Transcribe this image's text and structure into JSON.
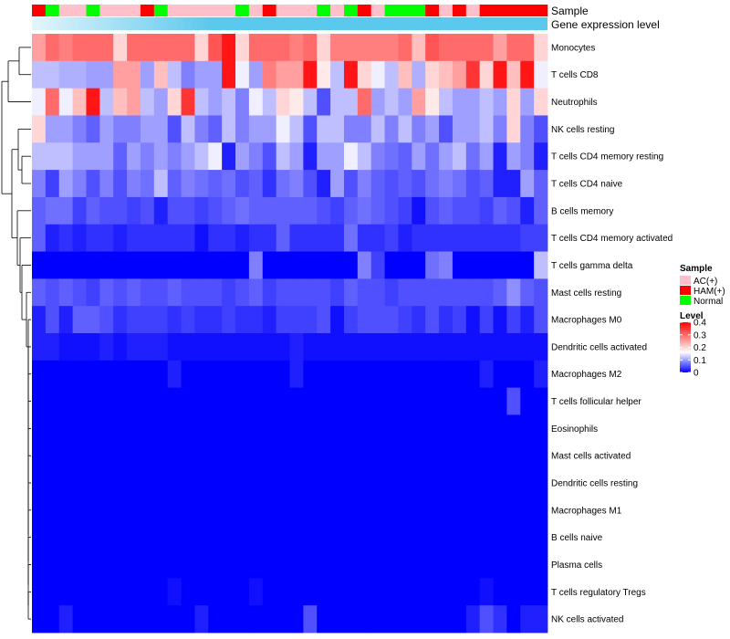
{
  "chart_data": {
    "type": "heatmap",
    "annotation_labels": {
      "sample": "Sample",
      "expression": "Gene expression level"
    },
    "sample_colors": {
      "AC(+)": "#ffc0cb",
      "HAM(+)": "#ff0000",
      "Normal": "#00ff00"
    },
    "expression_color": "#5bc8ee",
    "expression_color_light": "#e4f5fb",
    "samples": [
      "HAM(+)",
      "Normal",
      "AC(+)",
      "AC(+)",
      "Normal",
      "AC(+)",
      "AC(+)",
      "AC(+)",
      "HAM(+)",
      "Normal",
      "AC(+)",
      "AC(+)",
      "AC(+)",
      "AC(+)",
      "AC(+)",
      "Normal",
      "AC(+)",
      "HAM(+)",
      "AC(+)",
      "AC(+)",
      "AC(+)",
      "Normal",
      "AC(+)",
      "Normal",
      "HAM(+)",
      "AC(+)",
      "Normal",
      "Normal",
      "Normal",
      "HAM(+)",
      "AC(+)",
      "HAM(+)",
      "AC(+)",
      "HAM(+)",
      "HAM(+)",
      "HAM(+)",
      "HAM(+)",
      "HAM(+)"
    ],
    "rows": [
      "Monocytes",
      "T cells CD8",
      "Neutrophils",
      "NK cells resting",
      "T cells CD4 memory resting",
      "T cells CD4 naive",
      "B cells memory",
      "T cells CD4 memory activated",
      "T cells gamma delta",
      "Mast cells resting",
      "Macrophages M0",
      "Dendritic cells activated",
      "Macrophages M2",
      "T cells follicular helper",
      "Eosinophils",
      "Mast cells activated",
      "Dendritic cells resting",
      "Macrophages M1",
      "B cells naive",
      "Plasma cells",
      "T cells regulatory  Tregs",
      "NK cells activated"
    ],
    "values": [
      [
        0.25,
        0.3,
        0.28,
        0.3,
        0.3,
        0.3,
        0.2,
        0.3,
        0.3,
        0.3,
        0.3,
        0.3,
        0.2,
        0.32,
        0.38,
        0.2,
        0.3,
        0.3,
        0.3,
        0.28,
        0.3,
        0.2,
        0.28,
        0.28,
        0.28,
        0.28,
        0.28,
        0.3,
        0.22,
        0.32,
        0.3,
        0.3,
        0.3,
        0.3,
        0.25,
        0.3,
        0.3,
        0.2
      ],
      [
        0.12,
        0.12,
        0.11,
        0.11,
        0.1,
        0.1,
        0.25,
        0.25,
        0.1,
        0.22,
        0.12,
        0.08,
        0.1,
        0.1,
        0.38,
        0.15,
        0.1,
        0.28,
        0.25,
        0.25,
        0.38,
        0.18,
        0.12,
        0.38,
        0.2,
        0.15,
        0.12,
        0.22,
        0.11,
        0.2,
        0.22,
        0.25,
        0.35,
        0.2,
        0.38,
        0.22,
        0.38,
        0.15
      ],
      [
        0.15,
        0.3,
        0.15,
        0.22,
        0.38,
        0.12,
        0.22,
        0.25,
        0.12,
        0.1,
        0.2,
        0.35,
        0.12,
        0.1,
        0.12,
        0.08,
        0.15,
        0.12,
        0.2,
        0.18,
        0.12,
        0.05,
        0.12,
        0.12,
        0.3,
        0.1,
        0.12,
        0.1,
        0.25,
        0.18,
        0.12,
        0.1,
        0.1,
        0.12,
        0.1,
        0.2,
        0.1,
        0.2
      ],
      [
        0.2,
        0.1,
        0.1,
        0.08,
        0.06,
        0.1,
        0.08,
        0.08,
        0.1,
        0.1,
        0.05,
        0.12,
        0.08,
        0.06,
        0.12,
        0.08,
        0.1,
        0.1,
        0.15,
        0.12,
        0.05,
        0.12,
        0.12,
        0.08,
        0.08,
        0.12,
        0.08,
        0.12,
        0.08,
        0.1,
        0.05,
        0.1,
        0.1,
        0.12,
        0.08,
        0.2,
        0.08,
        0.05
      ],
      [
        0.12,
        0.12,
        0.12,
        0.1,
        0.1,
        0.1,
        0.06,
        0.1,
        0.08,
        0.1,
        0.08,
        0.1,
        0.12,
        0.15,
        0.02,
        0.1,
        0.08,
        0.05,
        0.12,
        0.1,
        0.02,
        0.1,
        0.1,
        0.15,
        0.12,
        0.08,
        0.07,
        0.06,
        0.1,
        0.07,
        0.1,
        0.12,
        0.07,
        0.1,
        0.02,
        0.1,
        0.08,
        0.02
      ],
      [
        0.08,
        0.04,
        0.1,
        0.08,
        0.05,
        0.08,
        0.05,
        0.08,
        0.07,
        0.12,
        0.06,
        0.08,
        0.07,
        0.06,
        0.07,
        0.05,
        0.06,
        0.03,
        0.07,
        0.08,
        0.05,
        0.02,
        0.1,
        0.05,
        0.08,
        0.06,
        0.05,
        0.06,
        0.05,
        0.07,
        0.08,
        0.07,
        0.05,
        0.06,
        0.02,
        0.02,
        0.1,
        0.06
      ],
      [
        0.06,
        0.07,
        0.07,
        0.04,
        0.06,
        0.05,
        0.05,
        0.04,
        0.05,
        0.02,
        0.05,
        0.05,
        0.04,
        0.05,
        0.06,
        0.07,
        0.06,
        0.06,
        0.06,
        0.06,
        0.06,
        0.05,
        0.04,
        0.06,
        0.07,
        0.06,
        0.05,
        0.04,
        0.01,
        0.05,
        0.06,
        0.05,
        0.05,
        0.04,
        0.06,
        0.05,
        0.02,
        0.06
      ],
      [
        0.06,
        0.02,
        0.03,
        0.02,
        0.03,
        0.03,
        0.02,
        0.03,
        0.03,
        0.03,
        0.03,
        0.03,
        0.01,
        0.03,
        0.03,
        0.02,
        0.03,
        0.03,
        0.06,
        0.03,
        0.03,
        0.03,
        0.03,
        0.07,
        0.03,
        0.03,
        0.04,
        0.02,
        0.03,
        0.03,
        0.03,
        0.03,
        0.03,
        0.03,
        0.03,
        0.03,
        0.04,
        0.04
      ],
      [
        0.0,
        0.0,
        0.0,
        0.0,
        0.0,
        0.0,
        0.0,
        0.0,
        0.0,
        0.0,
        0.0,
        0.0,
        0.0,
        0.0,
        0.0,
        0.0,
        0.08,
        0.0,
        0.0,
        0.0,
        0.0,
        0.0,
        0.0,
        0.0,
        0.08,
        0.04,
        0.0,
        0.0,
        0.0,
        0.07,
        0.08,
        0.0,
        0.0,
        0.0,
        0.0,
        0.0,
        0.0,
        0.12
      ],
      [
        0.06,
        0.05,
        0.06,
        0.05,
        0.04,
        0.06,
        0.05,
        0.06,
        0.05,
        0.05,
        0.06,
        0.05,
        0.05,
        0.05,
        0.04,
        0.05,
        0.06,
        0.04,
        0.05,
        0.05,
        0.05,
        0.05,
        0.04,
        0.06,
        0.05,
        0.05,
        0.04,
        0.05,
        0.05,
        0.05,
        0.05,
        0.05,
        0.05,
        0.05,
        0.06,
        0.09,
        0.06,
        0.05
      ],
      [
        0.02,
        0.05,
        0.02,
        0.06,
        0.06,
        0.05,
        0.03,
        0.04,
        0.04,
        0.04,
        0.03,
        0.04,
        0.03,
        0.03,
        0.04,
        0.03,
        0.03,
        0.02,
        0.04,
        0.04,
        0.04,
        0.05,
        0.01,
        0.04,
        0.05,
        0.05,
        0.05,
        0.04,
        0.03,
        0.05,
        0.03,
        0.04,
        0.01,
        0.04,
        0.01,
        0.04,
        0.02,
        0.05
      ],
      [
        0.02,
        0.02,
        0.01,
        0.01,
        0.01,
        0.02,
        0.01,
        0.02,
        0.02,
        0.02,
        0.01,
        0.01,
        0.01,
        0.01,
        0.01,
        0.01,
        0.01,
        0.01,
        0.01,
        0.02,
        0.01,
        0.01,
        0.01,
        0.01,
        0.01,
        0.01,
        0.01,
        0.01,
        0.01,
        0.01,
        0.01,
        0.01,
        0.01,
        0.01,
        0.01,
        0.01,
        0.01,
        0.01
      ],
      [
        0.0,
        0.0,
        0.0,
        0.0,
        0.0,
        0.0,
        0.0,
        0.0,
        0.0,
        0.0,
        0.02,
        0.0,
        0.0,
        0.0,
        0.0,
        0.0,
        0.0,
        0.0,
        0.0,
        0.02,
        0.0,
        0.0,
        0.0,
        0.0,
        0.0,
        0.0,
        0.0,
        0.0,
        0.0,
        0.0,
        0.0,
        0.0,
        0.0,
        0.02,
        0.0,
        0.0,
        0.0,
        0.02
      ],
      [
        0.0,
        0.0,
        0.0,
        0.0,
        0.0,
        0.0,
        0.0,
        0.0,
        0.0,
        0.0,
        0.0,
        0.0,
        0.0,
        0.0,
        0.0,
        0.0,
        0.0,
        0.0,
        0.0,
        0.0,
        0.0,
        0.0,
        0.0,
        0.0,
        0.0,
        0.0,
        0.0,
        0.0,
        0.0,
        0.0,
        0.0,
        0.0,
        0.0,
        0.0,
        0.0,
        0.05,
        0.0,
        0.0
      ],
      [
        0.0,
        0.0,
        0.0,
        0.0,
        0.0,
        0.0,
        0.0,
        0.0,
        0.0,
        0.0,
        0.0,
        0.0,
        0.0,
        0.0,
        0.0,
        0.0,
        0.0,
        0.0,
        0.0,
        0.0,
        0.0,
        0.0,
        0.0,
        0.0,
        0.0,
        0.0,
        0.0,
        0.0,
        0.0,
        0.0,
        0.0,
        0.0,
        0.0,
        0.0,
        0.0,
        0.0,
        0.0,
        0.0
      ],
      [
        0.0,
        0.0,
        0.0,
        0.0,
        0.0,
        0.0,
        0.0,
        0.0,
        0.0,
        0.0,
        0.0,
        0.0,
        0.0,
        0.0,
        0.0,
        0.0,
        0.0,
        0.0,
        0.0,
        0.0,
        0.0,
        0.0,
        0.0,
        0.0,
        0.0,
        0.0,
        0.0,
        0.0,
        0.0,
        0.0,
        0.0,
        0.0,
        0.0,
        0.0,
        0.0,
        0.0,
        0.0,
        0.0
      ],
      [
        0.0,
        0.0,
        0.0,
        0.0,
        0.0,
        0.0,
        0.0,
        0.0,
        0.0,
        0.0,
        0.0,
        0.0,
        0.0,
        0.0,
        0.0,
        0.0,
        0.0,
        0.0,
        0.0,
        0.0,
        0.0,
        0.0,
        0.0,
        0.0,
        0.0,
        0.0,
        0.0,
        0.0,
        0.0,
        0.0,
        0.0,
        0.0,
        0.0,
        0.0,
        0.0,
        0.0,
        0.0,
        0.0
      ],
      [
        0.0,
        0.0,
        0.0,
        0.0,
        0.0,
        0.0,
        0.0,
        0.0,
        0.0,
        0.0,
        0.0,
        0.0,
        0.0,
        0.0,
        0.0,
        0.0,
        0.0,
        0.0,
        0.0,
        0.0,
        0.0,
        0.0,
        0.0,
        0.0,
        0.0,
        0.0,
        0.0,
        0.0,
        0.0,
        0.0,
        0.0,
        0.0,
        0.0,
        0.0,
        0.0,
        0.0,
        0.0,
        0.0
      ],
      [
        0.0,
        0.0,
        0.0,
        0.0,
        0.0,
        0.0,
        0.0,
        0.0,
        0.0,
        0.0,
        0.0,
        0.0,
        0.0,
        0.0,
        0.0,
        0.0,
        0.0,
        0.0,
        0.0,
        0.0,
        0.0,
        0.0,
        0.0,
        0.0,
        0.0,
        0.0,
        0.0,
        0.0,
        0.0,
        0.0,
        0.0,
        0.0,
        0.0,
        0.0,
        0.0,
        0.0,
        0.0,
        0.0
      ],
      [
        0.0,
        0.0,
        0.0,
        0.0,
        0.0,
        0.0,
        0.0,
        0.0,
        0.0,
        0.0,
        0.0,
        0.0,
        0.0,
        0.0,
        0.0,
        0.0,
        0.0,
        0.0,
        0.0,
        0.0,
        0.0,
        0.0,
        0.0,
        0.0,
        0.0,
        0.0,
        0.0,
        0.0,
        0.0,
        0.0,
        0.0,
        0.0,
        0.0,
        0.0,
        0.0,
        0.0,
        0.0,
        0.0
      ],
      [
        0.0,
        0.0,
        0.0,
        0.0,
        0.0,
        0.0,
        0.0,
        0.0,
        0.0,
        0.0,
        0.01,
        0.0,
        0.0,
        0.0,
        0.0,
        0.0,
        0.01,
        0.0,
        0.0,
        0.0,
        0.0,
        0.0,
        0.0,
        0.0,
        0.0,
        0.0,
        0.0,
        0.0,
        0.0,
        0.0,
        0.0,
        0.0,
        0.0,
        0.01,
        0.0,
        0.0,
        0.0,
        0.0
      ],
      [
        0.0,
        0.0,
        0.02,
        0.0,
        0.0,
        0.0,
        0.0,
        0.0,
        0.0,
        0.0,
        0.0,
        0.0,
        0.02,
        0.0,
        0.0,
        0.0,
        0.0,
        0.0,
        0.0,
        0.0,
        0.05,
        0.0,
        0.0,
        0.0,
        0.0,
        0.0,
        0.0,
        0.0,
        0.0,
        0.0,
        0.0,
        0.0,
        0.02,
        0.05,
        0.03,
        0.0,
        0.02,
        0.02
      ]
    ],
    "legend": {
      "sample_title": "Sample",
      "sample_items": [
        "AC(+)",
        "HAM(+)",
        "Normal"
      ],
      "level_title": "Level",
      "level_ticks": [
        "0.4",
        "0.3",
        "0.2",
        "0.1",
        "0"
      ],
      "level_tick_values": [
        0.4,
        0.3,
        0.2,
        0.1,
        0
      ],
      "level_range": [
        0,
        0.4
      ]
    },
    "color_scale": {
      "low": "#0000ff",
      "mid": "#ffffff",
      "high": "#ff0000",
      "mid_value": 0.16
    }
  }
}
